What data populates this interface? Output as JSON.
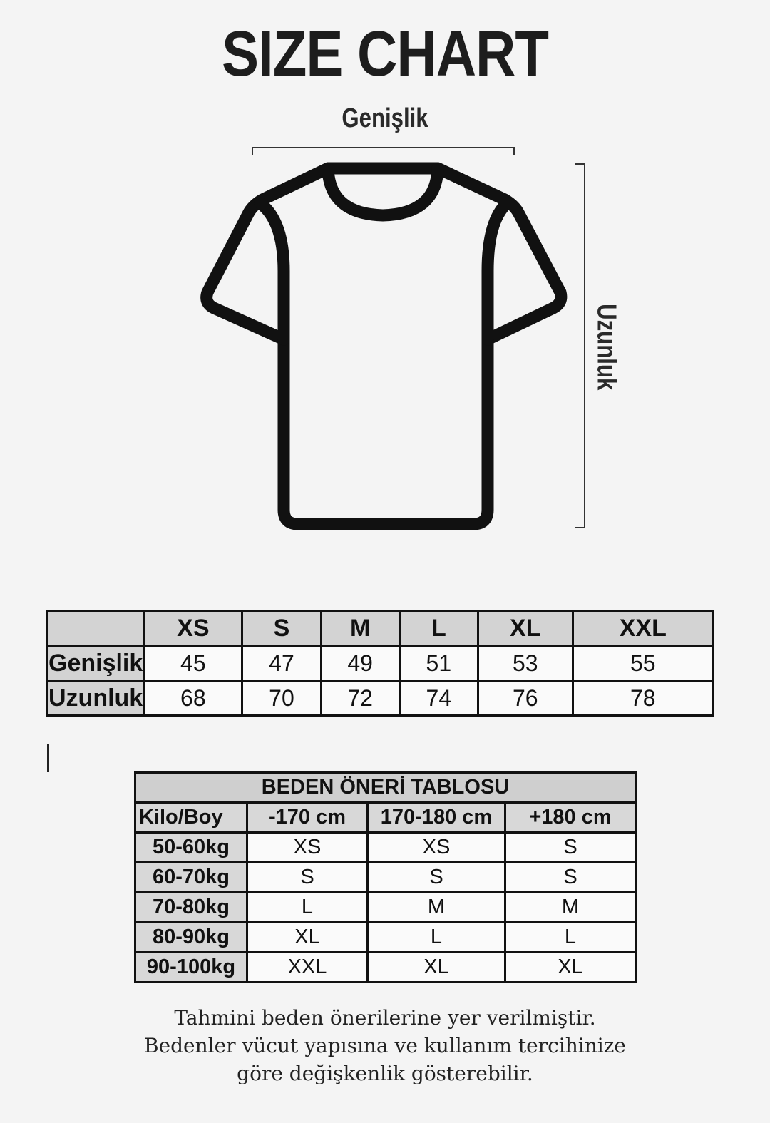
{
  "title": "SIZE CHART",
  "diagram": {
    "width_label": "Genişlik",
    "length_label": "Uzunluk"
  },
  "size_table": {
    "sizes": [
      "XS",
      "S",
      "M",
      "L",
      "XL",
      "XXL"
    ],
    "rows": [
      {
        "label": "Genişlik",
        "values": [
          "45",
          "47",
          "49",
          "51",
          "53",
          "55"
        ]
      },
      {
        "label": "Uzunluk",
        "values": [
          "68",
          "70",
          "72",
          "74",
          "76",
          "78"
        ]
      }
    ]
  },
  "recommendation_table": {
    "title": "BEDEN ÖNERİ TABLOSU",
    "corner": "Kilo/Boy",
    "heights": [
      "-170 cm",
      "170-180 cm",
      "+180 cm"
    ],
    "rows": [
      {
        "weight": "50-60kg",
        "sizes": [
          "XS",
          "XS",
          "S"
        ]
      },
      {
        "weight": "60-70kg",
        "sizes": [
          "S",
          "S",
          "S"
        ]
      },
      {
        "weight": "70-80kg",
        "sizes": [
          "L",
          "M",
          "M"
        ]
      },
      {
        "weight": "80-90kg",
        "sizes": [
          "XL",
          "L",
          "L"
        ]
      },
      {
        "weight": "90-100kg",
        "sizes": [
          "XXL",
          "XL",
          "XL"
        ]
      }
    ]
  },
  "note": [
    "Tahmini beden önerilerine yer verilmiştir.",
    "Bedenler vücut yapısına ve kullanım tercihinize",
    "göre değişkenlik gösterebilir."
  ]
}
